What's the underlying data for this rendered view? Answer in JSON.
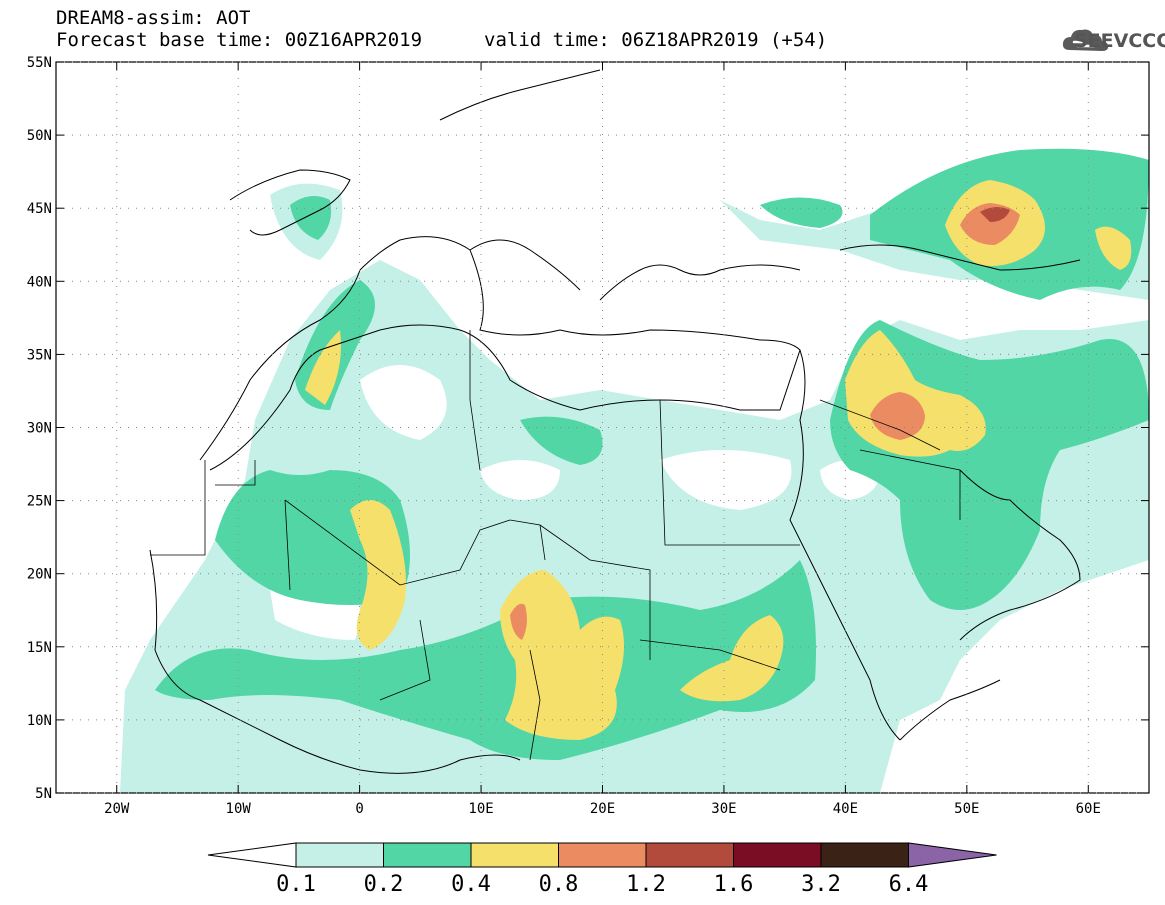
{
  "header": {
    "title": "DREAM8-assim: AOT",
    "base_time": "Forecast base time: 00Z16APR2019",
    "valid_time": "valid time: 06Z18APR2019 (+54)"
  },
  "logo": {
    "text": "SEEVCCC",
    "icon": "cloud-icon"
  },
  "map": {
    "lat_labels": [
      "55N",
      "50N",
      "45N",
      "40N",
      "35N",
      "30N",
      "25N",
      "20N",
      "15N",
      "10N",
      "5N"
    ],
    "lon_labels": [
      "20W",
      "10W",
      "0",
      "10E",
      "20E",
      "30E",
      "40E",
      "50E",
      "60E"
    ],
    "lat_values": [
      55,
      50,
      45,
      40,
      35,
      30,
      25,
      20,
      15,
      10,
      5
    ],
    "lon_values": [
      -20,
      -10,
      0,
      10,
      20,
      30,
      40,
      50,
      60
    ],
    "lon_range": [
      -25,
      65
    ],
    "lat_range": [
      5,
      55
    ]
  },
  "colorbar": {
    "labels": [
      "0.1",
      "0.2",
      "0.4",
      "0.8",
      "1.2",
      "1.6",
      "3.2",
      "6.4"
    ],
    "colors": [
      "#c4f0e8",
      "#52d6a6",
      "#f5e06c",
      "#ea8b61",
      "#b34b3d",
      "#7a0c24",
      "#3b2217",
      "#8a64a6"
    ],
    "under_color": "#ffffff"
  }
}
